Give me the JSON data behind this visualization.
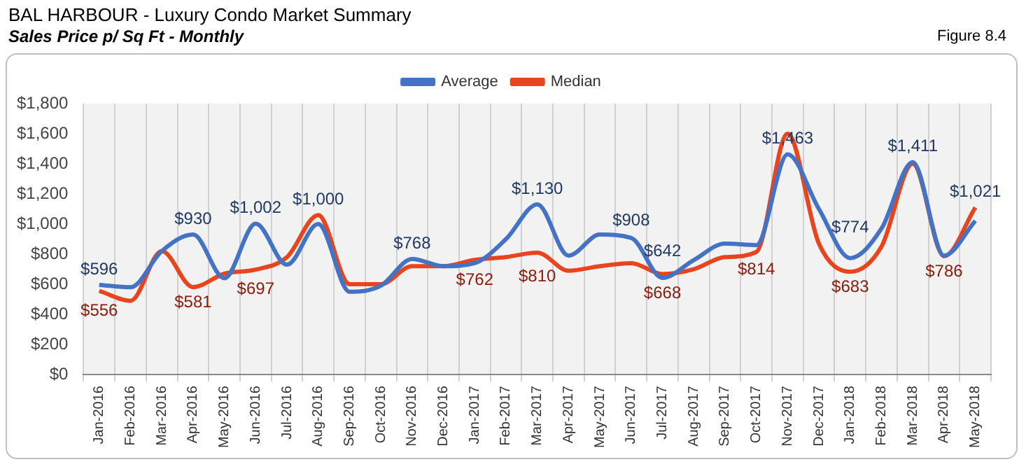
{
  "chart_data": {
    "type": "line",
    "title": "BAL HARBOUR - Luxury Condo Market Summary",
    "subtitle": "Sales Price  p/ Sq Ft - Monthly",
    "annotations": [
      "Figure 8.4"
    ],
    "categories": [
      "Jan-2016",
      "Feb-2016",
      "Mar-2016",
      "Apr-2016",
      "May-2016",
      "Jun-2016",
      "Jul-2016",
      "Aug-2016",
      "Sep-2016",
      "Oct-2016",
      "Nov-2016",
      "Dec-2016",
      "Jan-2017",
      "Feb-2017",
      "Mar-2017",
      "Apr-2017",
      "May-2017",
      "Jun-2017",
      "Jul-2017",
      "Aug-2017",
      "Sep-2017",
      "Oct-2017",
      "Nov-2017",
      "Dec-2017",
      "Jan-2018",
      "Feb-2018",
      "Mar-2018",
      "Apr-2018",
      "May-2018"
    ],
    "series": [
      {
        "name": "Average",
        "color": "#4472c4",
        "values": [
          596,
          580,
          820,
          930,
          640,
          1002,
          730,
          1000,
          550,
          590,
          768,
          720,
          740,
          900,
          1130,
          790,
          930,
          908,
          642,
          760,
          870,
          860,
          1463,
          1100,
          774,
          970,
          1411,
          790,
          1021
        ],
        "value_labels": [
          "$596",
          null,
          null,
          "$930",
          null,
          "$1,002",
          null,
          "$1,000",
          null,
          null,
          "$768",
          null,
          null,
          null,
          "$1,130",
          null,
          null,
          "$908",
          "$642",
          null,
          null,
          null,
          "$1,463",
          null,
          "$774",
          null,
          "$1,411",
          null,
          "$1,021"
        ]
      },
      {
        "name": "Median",
        "color": "#e8451e",
        "values": [
          556,
          490,
          820,
          581,
          670,
          697,
          780,
          1060,
          600,
          600,
          720,
          720,
          762,
          780,
          810,
          690,
          720,
          740,
          668,
          700,
          780,
          814,
          1600,
          870,
          683,
          850,
          1400,
          786,
          1110
        ],
        "value_labels": [
          "$556",
          null,
          null,
          "$581",
          null,
          "$697",
          null,
          null,
          null,
          null,
          null,
          null,
          "$762",
          null,
          "$810",
          null,
          null,
          null,
          "$668",
          null,
          null,
          "$814",
          null,
          null,
          "$683",
          null,
          null,
          "$786",
          null
        ]
      }
    ],
    "ylim": [
      0,
      1800
    ],
    "yticks": [
      {
        "value": 0,
        "label": "$0"
      },
      {
        "value": 200,
        "label": "$200"
      },
      {
        "value": 400,
        "label": "$400"
      },
      {
        "value": 600,
        "label": "$600"
      },
      {
        "value": 800,
        "label": "$800"
      },
      {
        "value": 1000,
        "label": "$1,000"
      },
      {
        "value": 1200,
        "label": "$1,200"
      },
      {
        "value": 1400,
        "label": "$1,400"
      },
      {
        "value": 1600,
        "label": "$1,600"
      },
      {
        "value": 1800,
        "label": "$1,800"
      }
    ],
    "grid": "x",
    "legend": "top",
    "marker": "none",
    "line_style": "solid"
  }
}
